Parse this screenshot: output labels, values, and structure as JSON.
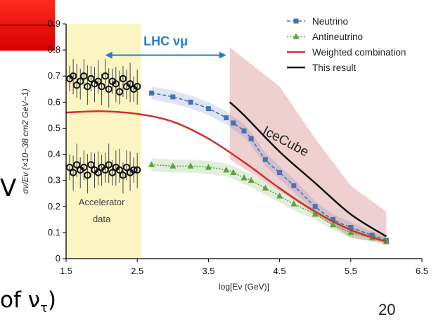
{
  "slide": {
    "fragment_left": "V",
    "fragment_bottom": "of  ν",
    "fragment_bottom_sub": "τ",
    "fragment_bottom_close": ")",
    "page_number": "20"
  },
  "colors": {
    "header_bar": "#e00000",
    "neutrino": "#4a6fb5",
    "antineutrino": "#5aa33a",
    "weighted": "#d0302a",
    "this_result": "#111111",
    "accelerator_band": "#fbf5c4",
    "icecube_band": "#ecc8c8",
    "lhc_arrow": "#2a7bd0"
  },
  "chart_data": {
    "type": "line",
    "title": "",
    "xlabel": "log[Eν (GeV)]",
    "ylabel": "σν/Eν (×10−38 cm2 GeV−1)",
    "xlim": [
      1.5,
      6.5
    ],
    "ylim": [
      0,
      0.9
    ],
    "xticks": [
      "1.5",
      "2.5",
      "3.5",
      "4.5",
      "5.5",
      "6.5"
    ],
    "yticks": [
      "0",
      "0.1",
      "0.2",
      "0.3",
      "0.4",
      "0.5",
      "0.6",
      "0.7",
      "0.8",
      "0.9"
    ],
    "grid": false,
    "legend_position": "top-right",
    "legend": [
      "Neutrino",
      "Antineutrino",
      "Weighted combination",
      "This result"
    ],
    "series": [
      {
        "name": "Neutrino",
        "style": "dashed-squares",
        "color": "#4a6fb5",
        "x": [
          2.7,
          3.0,
          3.25,
          3.5,
          3.75,
          3.85,
          4.0,
          4.1,
          4.3,
          4.5,
          4.7,
          5.0,
          5.25,
          5.5,
          5.8,
          6.0
        ],
        "y": [
          0.635,
          0.62,
          0.6,
          0.575,
          0.54,
          0.52,
          0.49,
          0.46,
          0.38,
          0.33,
          0.28,
          0.2,
          0.15,
          0.12,
          0.09,
          0.07
        ],
        "band": [
          0.025,
          0.025,
          0.025,
          0.025,
          0.025,
          0.025,
          0.025,
          0.025,
          0.025,
          0.025,
          0.025,
          0.02,
          0.02,
          0.02,
          0.015,
          0.015
        ]
      },
      {
        "name": "Antineutrino",
        "style": "dotted-triangles",
        "color": "#5aa33a",
        "x": [
          2.7,
          3.0,
          3.25,
          3.5,
          3.75,
          3.85,
          4.0,
          4.1,
          4.3,
          4.5,
          4.7,
          5.0,
          5.25,
          5.5,
          5.8,
          6.0
        ],
        "y": [
          0.36,
          0.355,
          0.355,
          0.35,
          0.34,
          0.33,
          0.31,
          0.3,
          0.27,
          0.24,
          0.21,
          0.17,
          0.13,
          0.1,
          0.08,
          0.065
        ],
        "band": [
          0.025,
          0.025,
          0.025,
          0.025,
          0.025,
          0.025,
          0.025,
          0.025,
          0.025,
          0.025,
          0.025,
          0.02,
          0.02,
          0.02,
          0.015,
          0.015
        ]
      },
      {
        "name": "Weighted combination",
        "style": "solid",
        "color": "#d0302a",
        "x": [
          1.5,
          2.0,
          2.5,
          3.0,
          3.5,
          4.0,
          4.5,
          5.0,
          5.5,
          6.0
        ],
        "y": [
          0.56,
          0.565,
          0.555,
          0.525,
          0.46,
          0.37,
          0.27,
          0.18,
          0.11,
          0.065
        ]
      },
      {
        "name": "This result",
        "style": "solid",
        "color": "#111111",
        "x": [
          3.8,
          4.0,
          4.5,
          5.0,
          5.5,
          6.0
        ],
        "y": [
          0.6,
          0.55,
          0.41,
          0.29,
          0.17,
          0.085
        ]
      }
    ],
    "icecube_band": {
      "label": "IceCube",
      "x": [
        3.8,
        4.5,
        5.0,
        5.5,
        6.0
      ],
      "upper": [
        0.81,
        0.66,
        0.46,
        0.28,
        0.18
      ],
      "lower": [
        0.38,
        0.26,
        0.17,
        0.08,
        0.06
      ]
    },
    "accelerator_band": {
      "label": "Accelerator data",
      "x_range": [
        1.5,
        2.55
      ]
    },
    "accelerator_data": {
      "neutrino": {
        "x": [
          1.55,
          1.6,
          1.65,
          1.7,
          1.75,
          1.8,
          1.85,
          1.9,
          1.95,
          2.0,
          2.05,
          2.1,
          2.15,
          2.2,
          2.25,
          2.3,
          2.35,
          2.4,
          2.45,
          2.5
        ],
        "y": [
          0.69,
          0.7,
          0.665,
          0.68,
          0.7,
          0.66,
          0.69,
          0.67,
          0.68,
          0.66,
          0.7,
          0.65,
          0.68,
          0.67,
          0.64,
          0.69,
          0.66,
          0.67,
          0.65,
          0.66
        ]
      },
      "antineutrino": {
        "x": [
          1.55,
          1.6,
          1.65,
          1.7,
          1.75,
          1.8,
          1.85,
          1.9,
          1.95,
          2.0,
          2.05,
          2.1,
          2.15,
          2.2,
          2.25,
          2.3,
          2.35,
          2.4,
          2.45,
          2.5
        ],
        "y": [
          0.35,
          0.33,
          0.36,
          0.34,
          0.35,
          0.32,
          0.36,
          0.34,
          0.33,
          0.35,
          0.34,
          0.36,
          0.33,
          0.35,
          0.34,
          0.32,
          0.35,
          0.33,
          0.34,
          0.34
        ]
      }
    },
    "annotations": [
      {
        "text": "LHC νμ",
        "type": "range-arrow",
        "x_range": [
          2.05,
          3.75
        ],
        "y": 0.78
      }
    ]
  }
}
